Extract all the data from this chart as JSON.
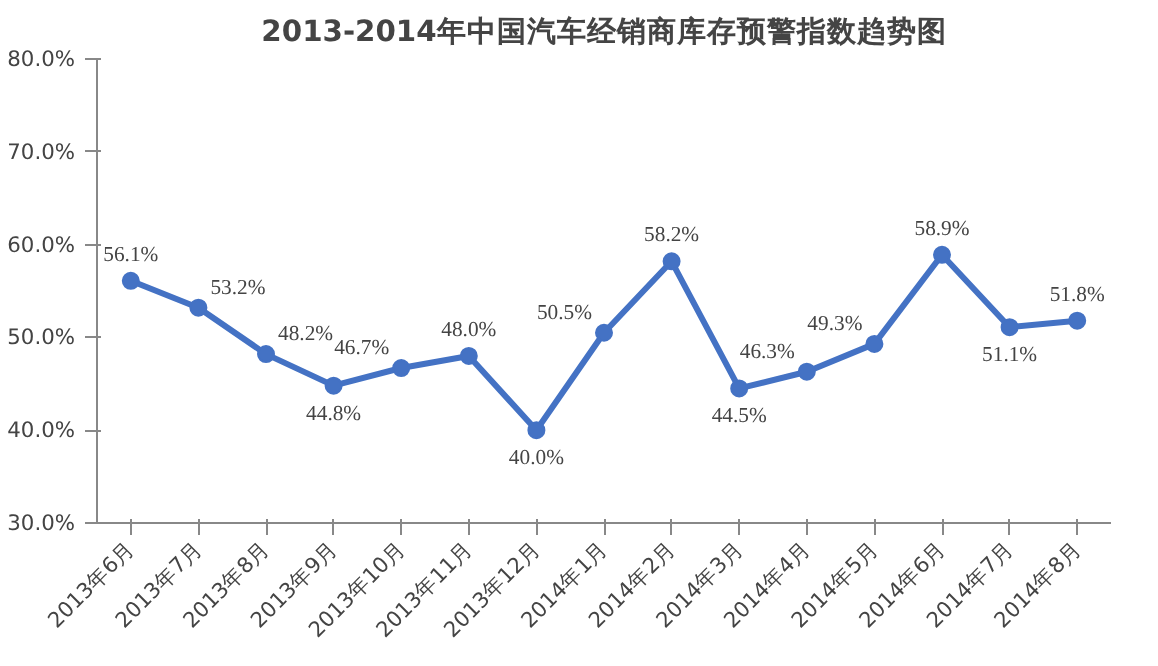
{
  "chart_data": {
    "type": "line",
    "title": "2013-2014年中国汽车经销商库存预警指数趋势图",
    "categories": [
      "2013年6月",
      "2013年7月",
      "2013年8月",
      "2013年9月",
      "2013年10月",
      "2013年11月",
      "2013年12月",
      "2014年1月",
      "2014年2月",
      "2014年3月",
      "2014年4月",
      "2014年5月",
      "2014年6月",
      "2014年7月",
      "2014年8月"
    ],
    "series": [
      {
        "color": "#4472c4",
        "values": [
          56.1,
          53.2,
          48.2,
          44.8,
          46.7,
          48.0,
          40.0,
          50.5,
          58.2,
          44.5,
          46.3,
          49.3,
          58.9,
          51.1,
          51.8
        ],
        "value_labels": [
          "56.1%",
          "53.2%",
          "48.2%",
          "44.8%",
          "46.7%",
          "48.0%",
          "40.0%",
          "50.5%",
          "58.2%",
          "44.5%",
          "46.3%",
          "49.3%",
          "58.9%",
          "51.1%",
          "51.8%"
        ]
      }
    ],
    "ylim": [
      30,
      80
    ],
    "yticks": [
      {
        "value": 30,
        "label": "30.0%"
      },
      {
        "value": 40,
        "label": "40.0%"
      },
      {
        "value": 50,
        "label": "50.0%"
      },
      {
        "value": 60,
        "label": "60.0%"
      },
      {
        "value": 70,
        "label": "70.0%"
      },
      {
        "value": 80,
        "label": "80.0%"
      }
    ],
    "grid": false,
    "marker": "circle",
    "line_style": "solid"
  }
}
